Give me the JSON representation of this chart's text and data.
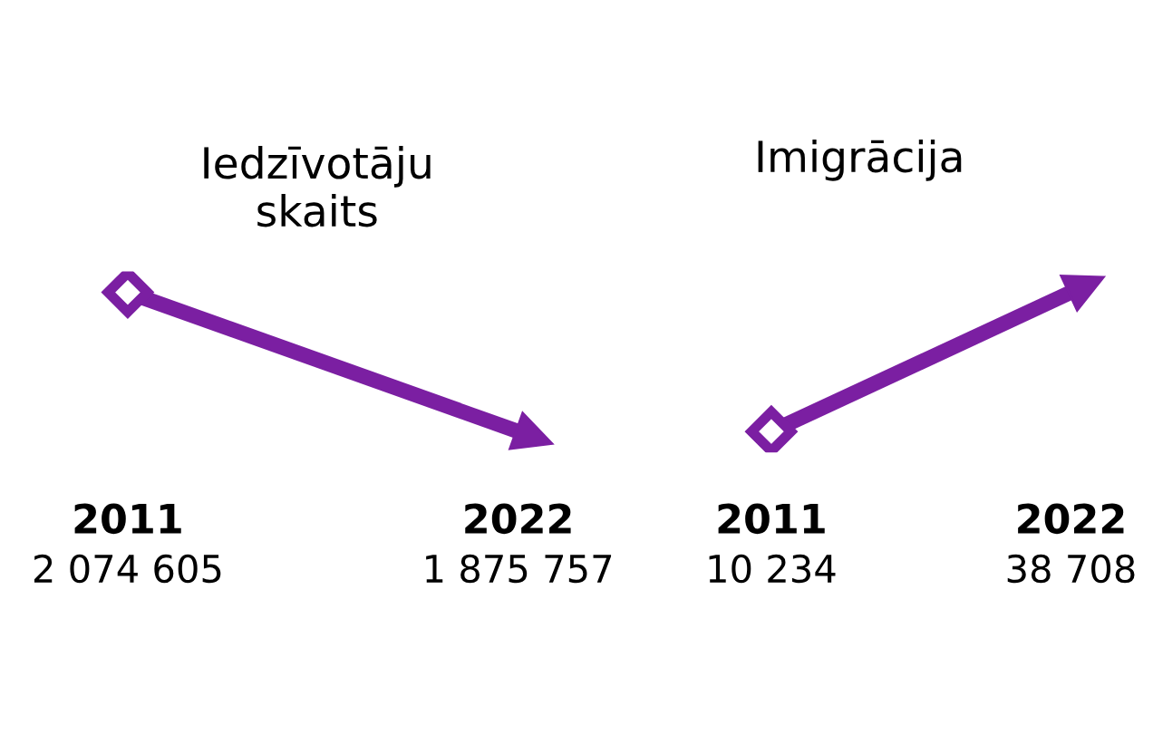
{
  "chart_data": [
    {
      "type": "line",
      "title": "Iedzīvotāju\nskaits",
      "categories": [
        "2011",
        "2022"
      ],
      "values": [
        2074605,
        1875757
      ],
      "data_labels": true,
      "color": "#7b1fa2",
      "marker": "diamond",
      "tick_labels": "x"
    },
    {
      "type": "line",
      "title": "Imigrācija",
      "categories": [
        "2011",
        "2022"
      ],
      "values": [
        10234,
        38708
      ],
      "data_labels": true,
      "color": "#7b1fa2",
      "marker": "diamond",
      "tick_labels": "x"
    }
  ]
}
